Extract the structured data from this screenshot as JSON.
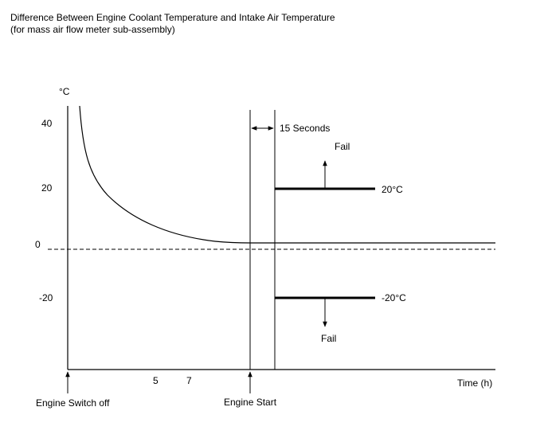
{
  "title": {
    "line1": "Difference Between Engine Coolant Temperature and Intake Air Temperature",
    "line2": "(for mass air flow meter sub-assembly)"
  },
  "axis": {
    "y_unit": "°C",
    "y_ticks": [
      "40",
      "20",
      "0",
      "-20"
    ],
    "x_ticks": [
      "5",
      "7"
    ],
    "x_label": "Time (h)"
  },
  "annotations": {
    "interval": "15 Seconds",
    "fail_upper": "Fail",
    "fail_lower": "Fail",
    "threshold_upper": "20°C",
    "threshold_lower": "-20°C"
  },
  "events": {
    "switch_off": "Engine Switch off",
    "start": "Engine Start"
  }
}
